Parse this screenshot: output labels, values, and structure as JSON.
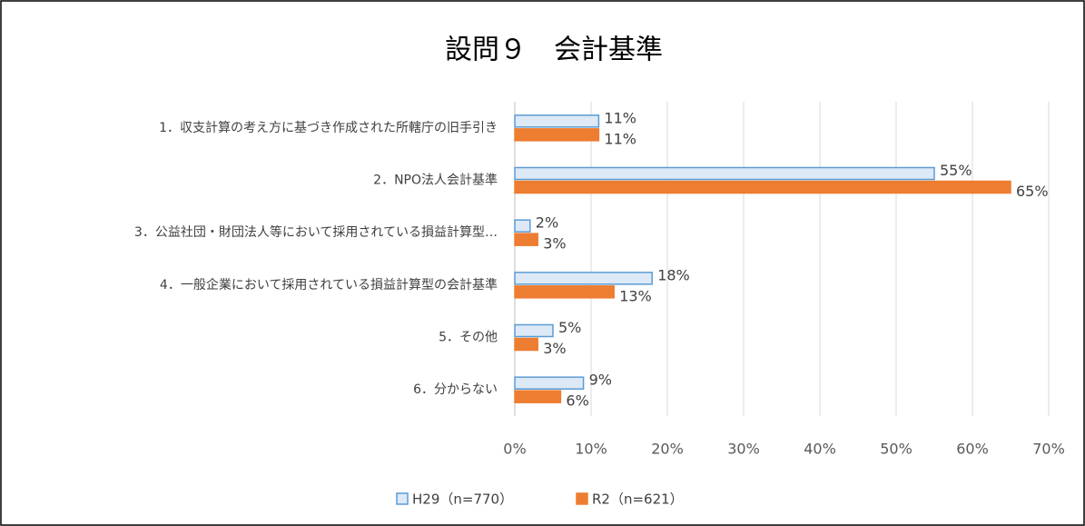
{
  "chart_data": {
    "type": "barh",
    "title": "設問９　会計基準",
    "categories": [
      "1．収支計算の考え方に基づき作成された所轄庁の旧手引き",
      "2．NPO法人会計基準",
      "3．公益社団・財団法人等において採用されている損益計算型…",
      "4．一般企業において採用されている損益計算型の会計基準",
      "5．その他",
      "6．分からない"
    ],
    "series": [
      {
        "name": "H29（n=770）",
        "color": "#dde9f6",
        "edgecolor": "#5b9bd5",
        "values": [
          11,
          55,
          2,
          18,
          5,
          9
        ],
        "value_labels": [
          "11%",
          "55%",
          "2%",
          "18%",
          "5%",
          "9%"
        ]
      },
      {
        "name": "R2（n=621）",
        "color": "#ed7d31",
        "edgecolor": "#ed7d31",
        "values": [
          11,
          65,
          3,
          13,
          3,
          6
        ],
        "value_labels": [
          "11%",
          "65%",
          "3%",
          "13%",
          "3%",
          "6%"
        ]
      }
    ],
    "xlim": [
      0,
      70
    ],
    "xticks": [
      {
        "value": 0,
        "label": "0%"
      },
      {
        "value": 10,
        "label": "10%"
      },
      {
        "value": 20,
        "label": "20%"
      },
      {
        "value": 30,
        "label": "30%"
      },
      {
        "value": 40,
        "label": "40%"
      },
      {
        "value": 50,
        "label": "50%"
      },
      {
        "value": 60,
        "label": "60%"
      },
      {
        "value": 70,
        "label": "70%"
      }
    ],
    "grid": true,
    "legend": "bottom"
  }
}
